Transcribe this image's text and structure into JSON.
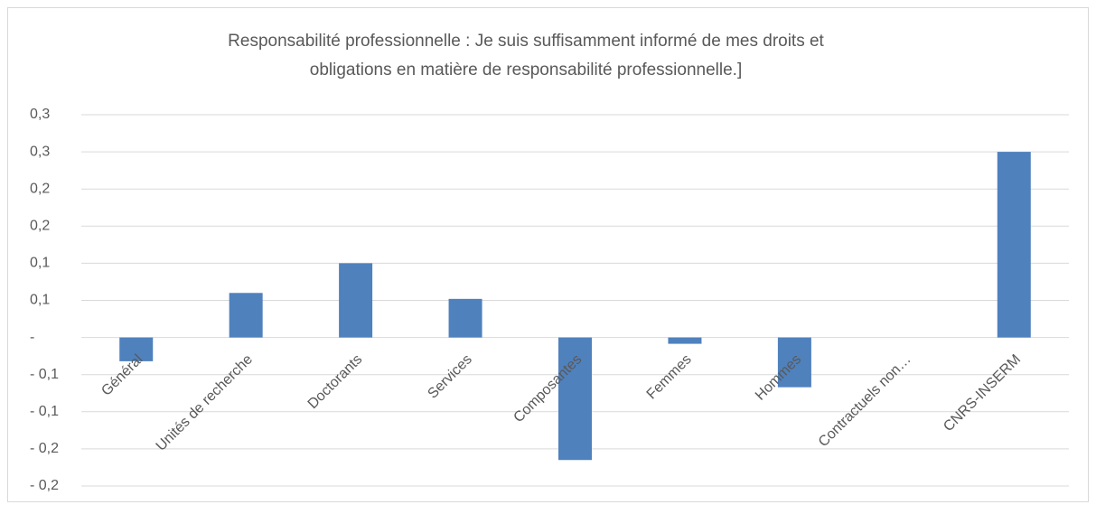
{
  "chart_data": {
    "type": "bar",
    "title": [
      "Responsabilité professionnelle : Je suis suffisamment informé de mes droits et",
      "obligations en matière de responsabilité professionnelle.]"
    ],
    "categories": [
      "Général",
      "Unités de recherche",
      "Doctorants",
      "Services",
      "Composantes",
      "Femmes",
      "Hommes",
      "Contractuels non…",
      "CNRS-INSERM"
    ],
    "values": [
      -0.032,
      0.06,
      0.1,
      0.052,
      -0.165,
      -0.0085,
      -0.067,
      0,
      0.25
    ],
    "color": "#4f81bd",
    "ylim": [
      -0.2,
      0.3
    ],
    "yticks": [
      {
        "value": 0.3,
        "label": "0,3"
      },
      {
        "value": 0.25,
        "label": "0,3"
      },
      {
        "value": 0.2,
        "label": "0,2"
      },
      {
        "value": 0.15,
        "label": "0,2"
      },
      {
        "value": 0.1,
        "label": "0,1"
      },
      {
        "value": 0.05,
        "label": "0,1"
      },
      {
        "value": 0,
        "label": "-"
      },
      {
        "value": -0.05,
        "label": "- 0,1"
      },
      {
        "value": -0.1,
        "label": "- 0,1"
      },
      {
        "value": -0.15,
        "label": "- 0,2"
      },
      {
        "value": -0.2,
        "label": "- 0,2"
      }
    ],
    "grid": true
  }
}
